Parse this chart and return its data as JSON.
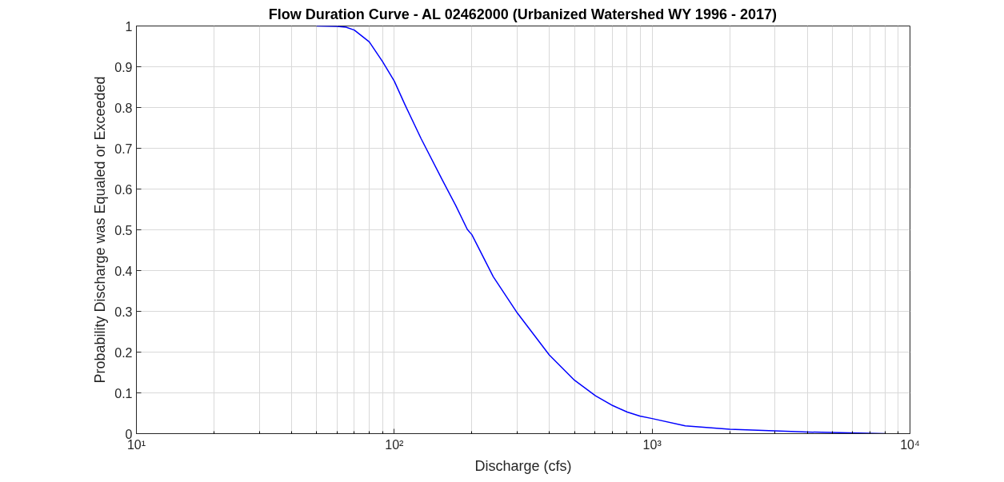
{
  "chart_data": {
    "type": "line",
    "title": "Flow Duration Curve - AL 02462000 (Urbanized Watershed WY 1996 - 2017)",
    "xlabel": "Discharge (cfs)",
    "ylabel": "Probability Discharge was Equaled or Exceeded",
    "log": "x",
    "grid": true,
    "marker": "none",
    "line_style": "solid",
    "xlim": [
      10,
      10000
    ],
    "xticks": [
      {
        "value": 10,
        "label": "10¹"
      },
      {
        "value": 100,
        "label": "10²"
      },
      {
        "value": 1000,
        "label": "10³"
      },
      {
        "value": 10000,
        "label": "10⁴"
      }
    ],
    "ylim": [
      0,
      1
    ],
    "yticks": [
      0,
      0.1,
      0.2,
      0.3,
      0.4,
      0.5,
      0.6,
      0.7,
      0.8,
      0.9,
      1
    ],
    "series": [
      {
        "color": "#0000ff",
        "x": [
          50,
          60,
          65,
          70,
          80,
          90,
          100,
          110,
          127,
          154,
          173,
          192,
          200,
          242,
          300,
          399,
          500,
          603,
          702,
          801,
          896,
          1000,
          1344,
          2000,
          4020,
          8000
        ],
        "values": [
          1.0,
          0.999,
          0.997,
          0.99,
          0.961,
          0.913,
          0.865,
          0.807,
          0.724,
          0.621,
          0.56,
          0.501,
          0.488,
          0.385,
          0.296,
          0.193,
          0.131,
          0.093,
          0.069,
          0.053,
          0.043,
          0.037,
          0.019,
          0.011,
          0.004,
          0.0
        ]
      }
    ]
  }
}
